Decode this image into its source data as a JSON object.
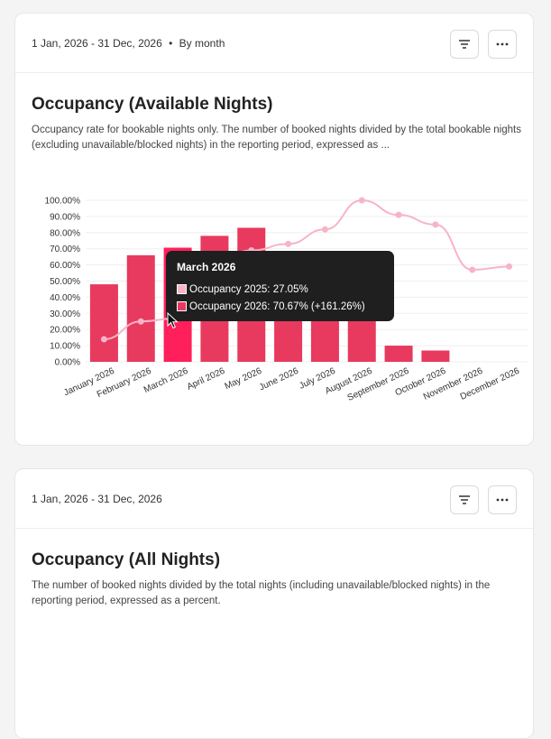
{
  "card1": {
    "range": "1 Jan, 2026 - 31 Dec, 2026",
    "separator": "•",
    "grouping": "By month",
    "filter_icon": "filter-icon",
    "more_icon": "more-icon",
    "title": "Occupancy (Available Nights)",
    "description": "Occupancy rate for bookable nights only. The number of booked nights divided by the total bookable nights (excluding unavailable/blocked nights) in the reporting period, expressed as ..."
  },
  "tooltip": {
    "title": "March 2026",
    "row1": "Occupancy 2025: 27.05%",
    "row2": "Occupancy 2026: 70.67% (+161.26%)"
  },
  "card2": {
    "range": "1 Jan, 2026 - 31 Dec, 2026",
    "filter_icon": "filter-icon",
    "more_icon": "more-icon",
    "title": "Occupancy (All Nights)",
    "description": "The number of booked nights divided by the total nights (including unavailable/blocked nights) in the reporting period, expressed as a percent."
  },
  "colors": {
    "bar_2026": "#e8395f",
    "bar_highlight": "#ff1f5a",
    "line_2025": "#f7b4c6",
    "tooltip_bg": "#1f1f1f"
  },
  "chart_data": {
    "type": "bar",
    "categories": [
      "January 2026",
      "February 2026",
      "March 2026",
      "April 2026",
      "May 2026",
      "June 2026",
      "July 2026",
      "August 2026",
      "September 2026",
      "October 2026",
      "November 2026",
      "December 2026"
    ],
    "yticks": [
      "0.00%",
      "10.00%",
      "20.00%",
      "30.00%",
      "40.00%",
      "50.00%",
      "60.00%",
      "70.00%",
      "80.00%",
      "90.00%",
      "100.00%"
    ],
    "ylim": [
      0,
      100
    ],
    "highlight_index": 2,
    "series": [
      {
        "name": "Occupancy 2026",
        "type": "bar",
        "values": [
          48,
          66,
          70.67,
          78,
          83,
          61,
          51,
          60,
          10,
          7,
          0,
          0
        ]
      },
      {
        "name": "Occupancy 2025",
        "type": "line",
        "values": [
          14,
          25,
          27.05,
          62,
          69,
          73,
          82,
          100,
          91,
          85,
          57,
          59
        ]
      }
    ]
  }
}
